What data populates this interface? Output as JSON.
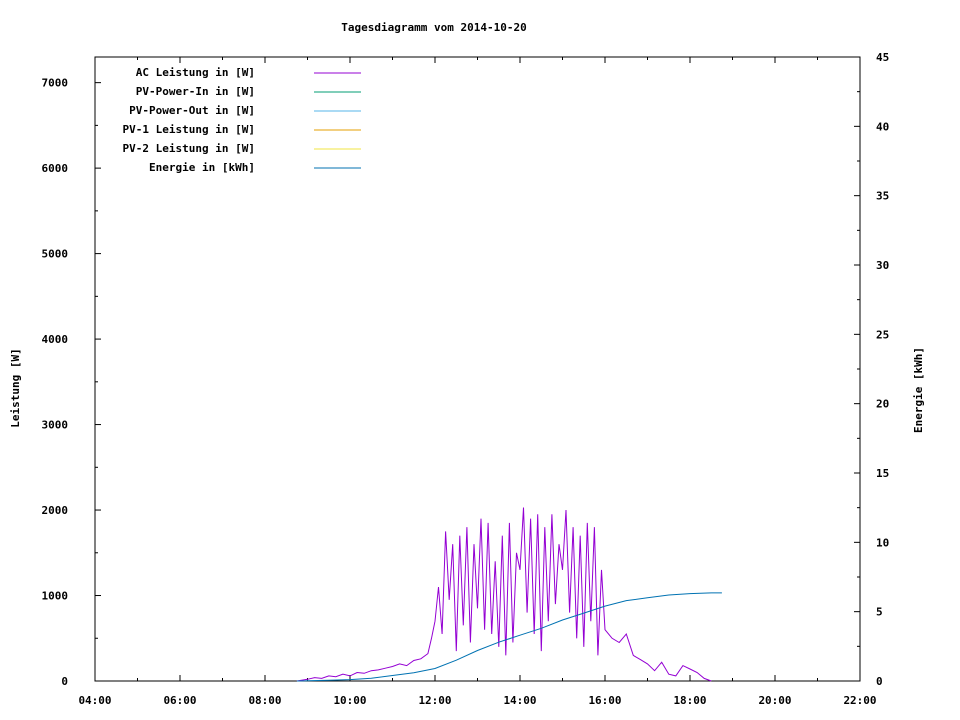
{
  "chart_data": {
    "type": "line",
    "title": "Tagesdiagramm vom 2014-10-20",
    "ylabel": "Leistung [W]",
    "y2label": "Energie [kWh]",
    "x_ticks": [
      "04:00",
      "06:00",
      "08:00",
      "10:00",
      "12:00",
      "14:00",
      "16:00",
      "18:00",
      "20:00",
      "22:00"
    ],
    "y_ticks": [
      "0",
      "1000",
      "2000",
      "3000",
      "4000",
      "5000",
      "6000",
      "7000"
    ],
    "y2_ticks": [
      "0",
      "5",
      "10",
      "15",
      "20",
      "25",
      "30",
      "35",
      "40",
      "45"
    ],
    "xlim": [
      "04:00",
      "22:00"
    ],
    "ylim": [
      0,
      7300
    ],
    "y2lim": [
      0,
      45
    ],
    "grid": false,
    "legend_position": "top-left",
    "colors": {
      "ac": "#9400d3",
      "pv_in": "#009e73",
      "pv_out": "#56b4e9",
      "pv1": "#e69f00",
      "pv2": "#f0e442",
      "energie": "#0072b2"
    },
    "series": [
      {
        "name": "AC Leistung in [W]",
        "axis": "y",
        "color": "#9400d3",
        "x": [
          "08:45",
          "09:00",
          "09:10",
          "09:20",
          "09:30",
          "09:40",
          "09:50",
          "10:00",
          "10:10",
          "10:20",
          "10:30",
          "10:40",
          "10:50",
          "11:00",
          "11:10",
          "11:20",
          "11:30",
          "11:40",
          "11:50",
          "11:55",
          "12:00",
          "12:05",
          "12:10",
          "12:15",
          "12:20",
          "12:25",
          "12:30",
          "12:35",
          "12:40",
          "12:45",
          "12:50",
          "12:55",
          "13:00",
          "13:05",
          "13:10",
          "13:15",
          "13:20",
          "13:25",
          "13:30",
          "13:35",
          "13:40",
          "13:45",
          "13:50",
          "13:55",
          "14:00",
          "14:05",
          "14:10",
          "14:15",
          "14:20",
          "14:25",
          "14:30",
          "14:35",
          "14:40",
          "14:45",
          "14:50",
          "14:55",
          "15:00",
          "15:05",
          "15:10",
          "15:15",
          "15:20",
          "15:25",
          "15:30",
          "15:35",
          "15:40",
          "15:45",
          "15:50",
          "15:55",
          "16:00",
          "16:10",
          "16:20",
          "16:30",
          "16:40",
          "16:50",
          "17:00",
          "17:10",
          "17:20",
          "17:30",
          "17:40",
          "17:50",
          "18:00",
          "18:10",
          "18:20",
          "18:30"
        ],
        "y": [
          0,
          20,
          40,
          30,
          60,
          50,
          80,
          60,
          100,
          90,
          120,
          130,
          150,
          170,
          200,
          180,
          240,
          260,
          320,
          500,
          700,
          1100,
          550,
          1750,
          950,
          1600,
          350,
          1700,
          650,
          1800,
          450,
          1600,
          850,
          1900,
          600,
          1850,
          550,
          1400,
          400,
          1700,
          300,
          1850,
          450,
          1500,
          1300,
          2030,
          800,
          1900,
          550,
          1950,
          350,
          1800,
          700,
          1950,
          900,
          1600,
          1300,
          2000,
          800,
          1800,
          500,
          1700,
          400,
          1850,
          700,
          1800,
          300,
          1300,
          600,
          500,
          450,
          550,
          300,
          250,
          200,
          120,
          220,
          80,
          60,
          180,
          140,
          100,
          30,
          0
        ]
      },
      {
        "name": "PV-Power-In in [W]",
        "axis": "y",
        "color": "#009e73",
        "x": [],
        "y": []
      },
      {
        "name": "PV-Power-Out in [W]",
        "axis": "y",
        "color": "#56b4e9",
        "x": [],
        "y": []
      },
      {
        "name": "PV-1 Leistung in [W]",
        "axis": "y",
        "color": "#e69f00",
        "x": [],
        "y": []
      },
      {
        "name": "PV-2 Leistung in [W]",
        "axis": "y",
        "color": "#f0e442",
        "x": [],
        "y": []
      },
      {
        "name": "Energie in [kWh]",
        "axis": "y2",
        "color": "#0072b2",
        "x": [
          "08:45",
          "09:30",
          "10:00",
          "10:30",
          "11:00",
          "11:30",
          "12:00",
          "12:30",
          "13:00",
          "13:30",
          "14:00",
          "14:30",
          "15:00",
          "15:30",
          "16:00",
          "16:30",
          "17:00",
          "17:30",
          "18:00",
          "18:30",
          "18:45"
        ],
        "y": [
          0,
          0.05,
          0.1,
          0.2,
          0.4,
          0.6,
          0.9,
          1.5,
          2.2,
          2.8,
          3.3,
          3.8,
          4.4,
          4.9,
          5.4,
          5.8,
          6.0,
          6.2,
          6.3,
          6.35,
          6.35
        ]
      }
    ]
  }
}
